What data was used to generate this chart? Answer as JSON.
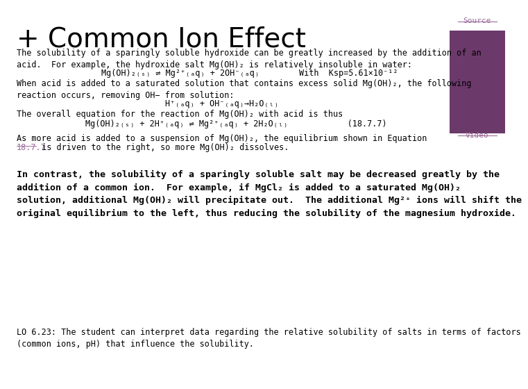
{
  "background_color": "#ffffff",
  "title_plus": "+ Common Ion Effect",
  "title_color": "#000000",
  "title_fontsize": 28,
  "purple_box_color": "#6B3A6B",
  "source_text": "Source",
  "video_text": "Video",
  "link_color": "#9B6B9B",
  "body_fontsize": 8.5,
  "bold_fontsize": 9.5,
  "para1": "The solubility of a sparingly soluble hydroxide can be greatly increased by the addition of an\nacid.  For example, the hydroxide salt Mg(OH)₂ is relatively insoluble in water:",
  "eq1": "Mg(OH)₂₍ₛ₎ ⇌ Mg²⁺₍ₐq₎ + 2OH⁻₍ₐq₎        With  Ksp=5.61×10⁻¹²",
  "para2": "When acid is added to a saturated solution that contains excess solid Mg(OH)₂, the following\nreaction occurs, removing OH− from solution:",
  "eq2": "H⁺₍ₐq₎ + OH⁻₍ₐq₎→H₂O₍ₗ₎",
  "para3": "The overall equation for the reaction of Mg(OH)₂ with acid is thus",
  "eq3": "Mg(OH)₂₍ₛ₎ + 2H⁺₍ₐq₎ ⇌ Mg²⁺₍ₐq₎ + 2H₂O₍ₗ₎            (18.7.7)",
  "para4_line1": "As more acid is added to a suspension of Mg(OH)₂, the equilibrium shown in Equation",
  "para4_link": "18.7.7",
  "para4_post": " is driven to the right, so more Mg(OH)₂ dissolves.",
  "para5": "In contrast, the solubility of a sparingly soluble salt may be decreased greatly by the\naddition of a common ion.  For example, if MgCl₂ is added to a saturated Mg(OH)₂\nsolution, additional Mg(OH)₂ will precipitate out.  The additional Mg²⁺ ions will shift the\noriginal equilibrium to the left, thus reducing the solubility of the magnesium hydroxide.",
  "lo_text": "LO 6.23: The student can interpret data regarding the relative solubility of salts in terms of factors\n(common ions, pH) that influence the solubility."
}
